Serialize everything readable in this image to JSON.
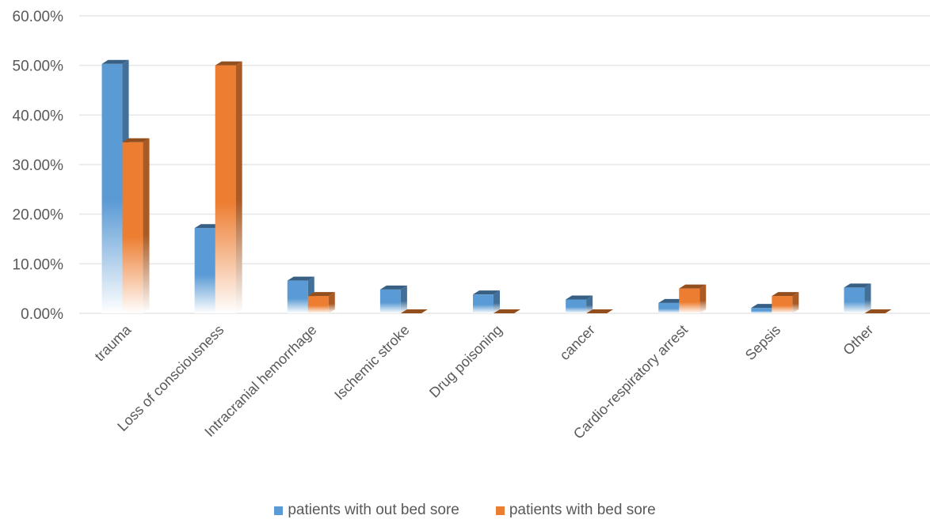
{
  "chart_data": {
    "type": "bar",
    "title": "",
    "xlabel": "",
    "ylabel": "",
    "ylim": [
      0,
      60
    ],
    "y_ticks": [
      "0.00%",
      "10.00%",
      "20.00%",
      "30.00%",
      "40.00%",
      "50.00%",
      "60.00%"
    ],
    "y_tick_values": [
      0,
      10,
      20,
      30,
      40,
      50,
      60
    ],
    "grid": true,
    "legend_position": "bottom",
    "categories": [
      "trauma",
      "Loss of consciousness",
      "Intracranial hemorrhage",
      "Ischemic stroke",
      "Drug poisoning",
      "cancer",
      "Cardio-respiratory arrest",
      "Sepsis",
      "Other"
    ],
    "series": [
      {
        "name": "patients with out bed sore",
        "color": "#5b9bd5",
        "values": [
          50.3,
          17.2,
          6.6,
          4.8,
          3.8,
          2.8,
          2.1,
          1.1,
          5.2
        ]
      },
      {
        "name": "patients with bed sore",
        "color": "#ed7d31",
        "values": [
          34.5,
          50.0,
          3.5,
          0.0,
          0.0,
          0.0,
          5.0,
          3.5,
          0.0
        ]
      }
    ]
  }
}
